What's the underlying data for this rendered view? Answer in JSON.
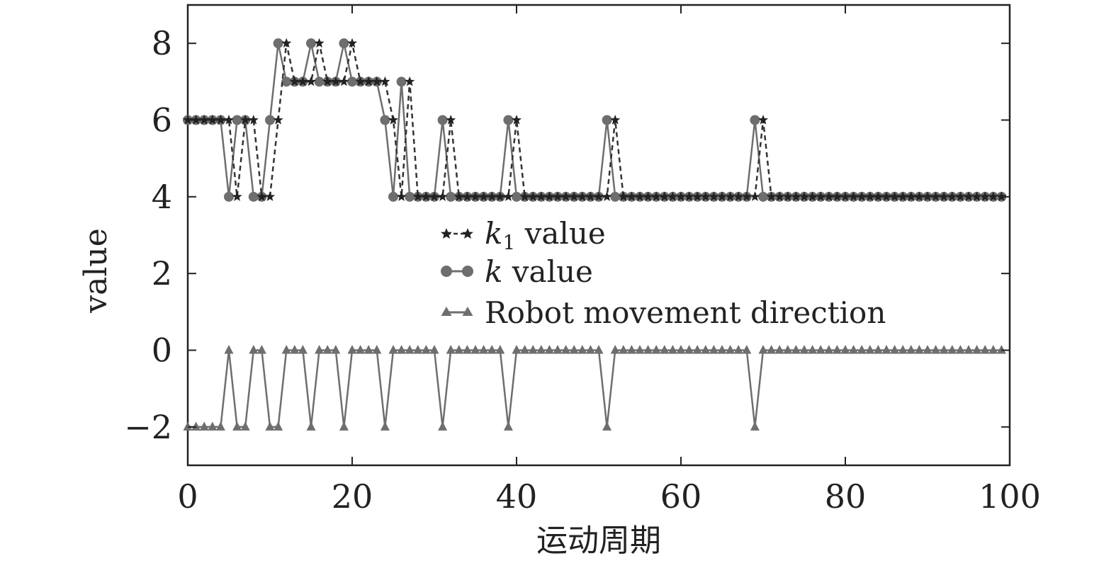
{
  "chart_data": {
    "type": "line",
    "xlabel": "运动周期",
    "ylabel": "value",
    "xlim": [
      0,
      100
    ],
    "ylim": [
      -3,
      9
    ],
    "xticks": [
      "0",
      "20",
      "40",
      "60",
      "80",
      "100"
    ],
    "yticks": [
      "−2",
      "0",
      "2",
      "4",
      "6",
      "8"
    ],
    "grid": false,
    "legend_position": "center",
    "legend": {
      "k1_symbol": "k",
      "k1_sub": "1",
      "k1_rest": " value",
      "k_symbol": "k",
      "k_rest": " value",
      "robot": "Robot movement direction"
    },
    "series": [
      {
        "name": "k1 value",
        "marker": "star",
        "linestyle": "dashed",
        "color": "#333333",
        "x": [
          0,
          1,
          2,
          3,
          4,
          5,
          6,
          7,
          8,
          9,
          10,
          11,
          12,
          13,
          14,
          15,
          16,
          17,
          18,
          19,
          20,
          21,
          22,
          23,
          24,
          25,
          26,
          27,
          28,
          29,
          30,
          31,
          32,
          33,
          34,
          35,
          36,
          37,
          38,
          39,
          40,
          41,
          42,
          43,
          44,
          45,
          46,
          47,
          48,
          49,
          50,
          51,
          52,
          53,
          54,
          55,
          56,
          57,
          58,
          59,
          60,
          61,
          62,
          63,
          64,
          65,
          66,
          67,
          68,
          69,
          70,
          71,
          72,
          73,
          74,
          75,
          76,
          77,
          78,
          79,
          80,
          81,
          82,
          83,
          84,
          85,
          86,
          87,
          88,
          89,
          90,
          91,
          92,
          93,
          94,
          95,
          96,
          97,
          98,
          99
        ],
        "values": [
          6,
          6,
          6,
          6,
          6,
          6,
          4,
          6,
          6,
          4,
          4,
          6,
          8,
          7,
          7,
          7,
          8,
          7,
          7,
          7,
          8,
          7,
          7,
          7,
          7,
          6,
          4,
          7,
          4,
          4,
          4,
          4,
          6,
          4,
          4,
          4,
          4,
          4,
          4,
          4,
          6,
          4,
          4,
          4,
          4,
          4,
          4,
          4,
          4,
          4,
          4,
          4,
          6,
          4,
          4,
          4,
          4,
          4,
          4,
          4,
          4,
          4,
          4,
          4,
          4,
          4,
          4,
          4,
          4,
          4,
          6,
          4,
          4,
          4,
          4,
          4,
          4,
          4,
          4,
          4,
          4,
          4,
          4,
          4,
          4,
          4,
          4,
          4,
          4,
          4,
          4,
          4,
          4,
          4,
          4,
          4,
          4,
          4,
          4,
          4
        ]
      },
      {
        "name": "k value",
        "marker": "circle",
        "linestyle": "solid",
        "color": "#6e6e6e",
        "x": [
          0,
          1,
          2,
          3,
          4,
          5,
          6,
          7,
          8,
          9,
          10,
          11,
          12,
          13,
          14,
          15,
          16,
          17,
          18,
          19,
          20,
          21,
          22,
          23,
          24,
          25,
          26,
          27,
          28,
          29,
          30,
          31,
          32,
          33,
          34,
          35,
          36,
          37,
          38,
          39,
          40,
          41,
          42,
          43,
          44,
          45,
          46,
          47,
          48,
          49,
          50,
          51,
          52,
          53,
          54,
          55,
          56,
          57,
          58,
          59,
          60,
          61,
          62,
          63,
          64,
          65,
          66,
          67,
          68,
          69,
          70,
          71,
          72,
          73,
          74,
          75,
          76,
          77,
          78,
          79,
          80,
          81,
          82,
          83,
          84,
          85,
          86,
          87,
          88,
          89,
          90,
          91,
          92,
          93,
          94,
          95,
          96,
          97,
          98,
          99
        ],
        "values": [
          6,
          6,
          6,
          6,
          6,
          4,
          6,
          6,
          4,
          4,
          6,
          8,
          7,
          7,
          7,
          8,
          7,
          7,
          7,
          8,
          7,
          7,
          7,
          7,
          6,
          4,
          7,
          4,
          4,
          4,
          4,
          6,
          4,
          4,
          4,
          4,
          4,
          4,
          4,
          6,
          4,
          4,
          4,
          4,
          4,
          4,
          4,
          4,
          4,
          4,
          4,
          6,
          4,
          4,
          4,
          4,
          4,
          4,
          4,
          4,
          4,
          4,
          4,
          4,
          4,
          4,
          4,
          4,
          4,
          6,
          4,
          4,
          4,
          4,
          4,
          4,
          4,
          4,
          4,
          4,
          4,
          4,
          4,
          4,
          4,
          4,
          4,
          4,
          4,
          4,
          4,
          4,
          4,
          4,
          4,
          4,
          4,
          4,
          4,
          4
        ]
      },
      {
        "name": "Robot movement direction",
        "marker": "triangle",
        "linestyle": "solid",
        "color": "#6e6e6e",
        "x": [
          0,
          1,
          2,
          3,
          4,
          5,
          6,
          7,
          8,
          9,
          10,
          11,
          12,
          13,
          14,
          15,
          16,
          17,
          18,
          19,
          20,
          21,
          22,
          23,
          24,
          25,
          26,
          27,
          28,
          29,
          30,
          31,
          32,
          33,
          34,
          35,
          36,
          37,
          38,
          39,
          40,
          41,
          42,
          43,
          44,
          45,
          46,
          47,
          48,
          49,
          50,
          51,
          52,
          53,
          54,
          55,
          56,
          57,
          58,
          59,
          60,
          61,
          62,
          63,
          64,
          65,
          66,
          67,
          68,
          69,
          70,
          71,
          72,
          73,
          74,
          75,
          76,
          77,
          78,
          79,
          80,
          81,
          82,
          83,
          84,
          85,
          86,
          87,
          88,
          89,
          90,
          91,
          92,
          93,
          94,
          95,
          96,
          97,
          98,
          99
        ],
        "values": [
          -2,
          -2,
          -2,
          -2,
          -2,
          0,
          -2,
          -2,
          0,
          0,
          -2,
          -2,
          0,
          0,
          0,
          -2,
          0,
          0,
          0,
          -2,
          0,
          0,
          0,
          0,
          -2,
          0,
          0,
          0,
          0,
          0,
          0,
          -2,
          0,
          0,
          0,
          0,
          0,
          0,
          0,
          -2,
          0,
          0,
          0,
          0,
          0,
          0,
          0,
          0,
          0,
          0,
          0,
          -2,
          0,
          0,
          0,
          0,
          0,
          0,
          0,
          0,
          0,
          0,
          0,
          0,
          0,
          0,
          0,
          0,
          0,
          -2,
          0,
          0,
          0,
          0,
          0,
          0,
          0,
          0,
          0,
          0,
          0,
          0,
          0,
          0,
          0,
          0,
          0,
          0,
          0,
          0,
          0,
          0,
          0,
          0,
          0,
          0,
          0,
          0,
          0,
          0
        ]
      }
    ]
  }
}
